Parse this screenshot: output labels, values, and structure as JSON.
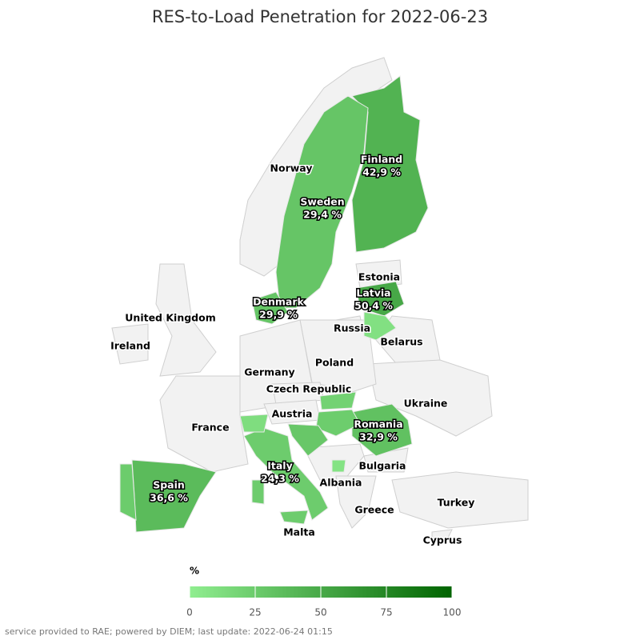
{
  "chart_data": {
    "type": "choropleth",
    "title": "RES-to-Load Penetration for 2022-06-23",
    "regions": [
      "Finland",
      "Sweden",
      "Latvia",
      "Denmark",
      "Romania",
      "Italy",
      "Spain",
      null,
      null,
      null,
      null,
      null,
      null,
      null
    ],
    "values": [
      42.9,
      29.4,
      50.4,
      29.9,
      32.9,
      24.3,
      36.6,
      25,
      10,
      24,
      20,
      12,
      28,
      8
    ],
    "value_labels": [
      "42,9 %",
      "29,4 %",
      "50,4 %",
      "29,9 %",
      "32,9 %",
      "24,3 %",
      "36,6 %",
      null,
      null,
      null,
      null,
      null,
      null,
      null
    ],
    "other_regions": [
      "Norway",
      "Estonia",
      "Russia",
      "United Kingdom",
      "Ireland",
      "Belarus",
      "Poland",
      "Germany",
      "Czech Republic",
      "Ukraine",
      "Austria",
      "France",
      "Bulgaria",
      "Albania",
      "Greece",
      "Turkey",
      "Malta",
      "Cyprus"
    ],
    "colorbar": {
      "title": "%",
      "lim": [
        0,
        100
      ],
      "ticks": [
        0,
        25,
        50,
        75,
        100
      ],
      "colors": [
        "#90ee90",
        "#006400"
      ]
    }
  },
  "footer": "service provided to RAE; powered by DIEM; last update: 2022-06-24 01:15"
}
